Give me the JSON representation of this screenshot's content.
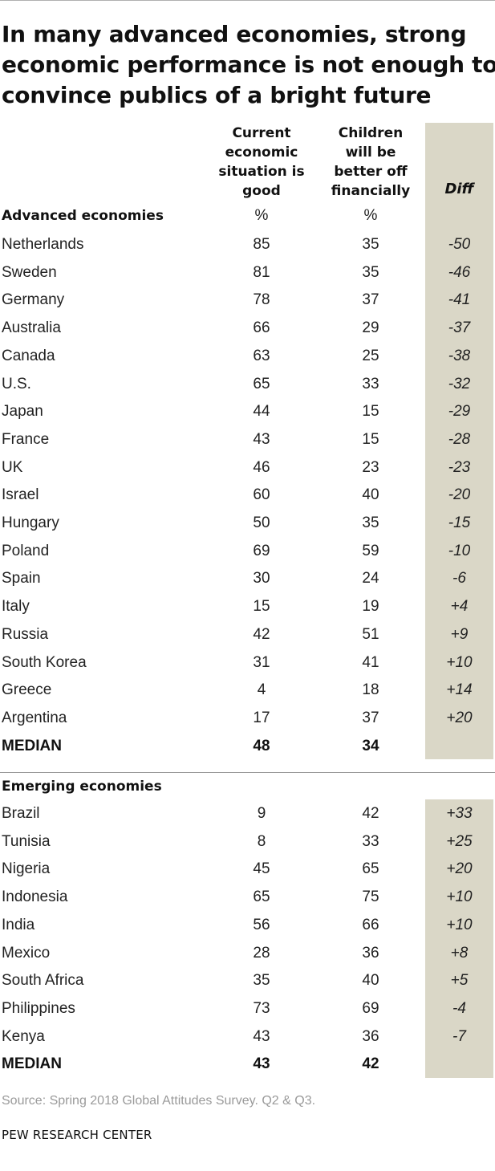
{
  "title_lines": [
    "In many advanced economies, strong",
    "economic performance is not enough to",
    "convince publics of a bright future"
  ],
  "columns": {
    "current": [
      "Current",
      "economic",
      "situation is",
      "good"
    ],
    "children": [
      "Children",
      "will be",
      "better off",
      "financially"
    ],
    "diff": "Diff",
    "unit": "%"
  },
  "colors": {
    "diff_band": "#dad7c7",
    "text": "#222222",
    "source": "#9a9a9a"
  },
  "chart_data": {
    "type": "table",
    "title": "In many advanced economies, strong economic performance is not enough to convince publics of a bright future",
    "columns": [
      "Current economic situation is good",
      "Children will be better off financially",
      "Diff"
    ],
    "units": "%",
    "groups": [
      {
        "label": "Advanced economies",
        "rows": [
          {
            "country": "Netherlands",
            "current": "85",
            "children": "35",
            "diff": "-50"
          },
          {
            "country": "Sweden",
            "current": "81",
            "children": "35",
            "diff": "-46"
          },
          {
            "country": "Germany",
            "current": "78",
            "children": "37",
            "diff": "-41"
          },
          {
            "country": "Australia",
            "current": "66",
            "children": "29",
            "diff": "-37"
          },
          {
            "country": "Canada",
            "current": "63",
            "children": "25",
            "diff": "-38"
          },
          {
            "country": "U.S.",
            "current": "65",
            "children": "33",
            "diff": "-32"
          },
          {
            "country": "Japan",
            "current": "44",
            "children": "15",
            "diff": "-29"
          },
          {
            "country": "France",
            "current": "43",
            "children": "15",
            "diff": "-28"
          },
          {
            "country": "UK",
            "current": "46",
            "children": "23",
            "diff": "-23"
          },
          {
            "country": "Israel",
            "current": "60",
            "children": "40",
            "diff": "-20"
          },
          {
            "country": "Hungary",
            "current": "50",
            "children": "35",
            "diff": "-15"
          },
          {
            "country": "Poland",
            "current": "69",
            "children": "59",
            "diff": "-10"
          },
          {
            "country": "Spain",
            "current": "30",
            "children": "24",
            "diff": "-6"
          },
          {
            "country": "Italy",
            "current": "15",
            "children": "19",
            "diff": "+4"
          },
          {
            "country": "Russia",
            "current": "42",
            "children": "51",
            "diff": "+9"
          },
          {
            "country": "South Korea",
            "current": "31",
            "children": "41",
            "diff": "+10"
          },
          {
            "country": "Greece",
            "current": "4",
            "children": "18",
            "diff": "+14"
          },
          {
            "country": "Argentina",
            "current": "17",
            "children": "37",
            "diff": "+20"
          }
        ],
        "median": {
          "label": "MEDIAN",
          "current": "48",
          "children": "34"
        }
      },
      {
        "label": "Emerging economies",
        "rows": [
          {
            "country": "Brazil",
            "current": "9",
            "children": "42",
            "diff": "+33"
          },
          {
            "country": "Tunisia",
            "current": "8",
            "children": "33",
            "diff": "+25"
          },
          {
            "country": "Nigeria",
            "current": "45",
            "children": "65",
            "diff": "+20"
          },
          {
            "country": "Indonesia",
            "current": "65",
            "children": "75",
            "diff": "+10"
          },
          {
            "country": "India",
            "current": "56",
            "children": "66",
            "diff": "+10"
          },
          {
            "country": "Mexico",
            "current": "28",
            "children": "36",
            "diff": "+8"
          },
          {
            "country": "South Africa",
            "current": "35",
            "children": "40",
            "diff": "+5"
          },
          {
            "country": "Philippines",
            "current": "73",
            "children": "69",
            "diff": "-4"
          },
          {
            "country": "Kenya",
            "current": "43",
            "children": "36",
            "diff": "-7"
          }
        ],
        "median": {
          "label": "MEDIAN",
          "current": "43",
          "children": "42"
        }
      }
    ]
  },
  "source": "Source: Spring 2018 Global Attitudes Survey. Q2 & Q3.",
  "credit": "PEW RESEARCH CENTER"
}
